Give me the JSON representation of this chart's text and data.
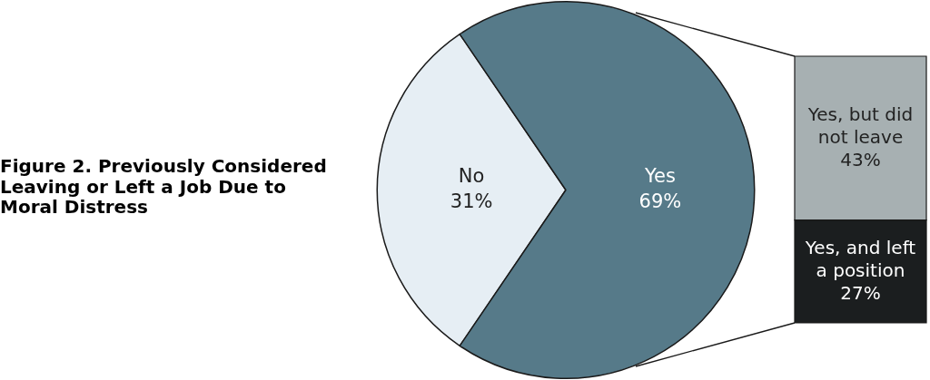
{
  "chart_data": [
    {
      "type": "pie",
      "title": "Figure 2. Previously Considered Leaving or Left a Job Due to Moral Distress",
      "categories": [
        "No",
        "Yes"
      ],
      "values": [
        31,
        69
      ],
      "colors": [
        "#e6eef4",
        "#567a89"
      ],
      "value_labels": [
        "31%",
        "69%"
      ]
    },
    {
      "type": "bar",
      "stacked": true,
      "tick_labels": false,
      "categories": [
        null
      ],
      "series": [
        {
          "name": "Yes, and left a position",
          "color": "#1b1e1f",
          "values": [
            27
          ],
          "value_labels": [
            "27%"
          ]
        },
        {
          "name": "Yes, but did not leave",
          "color": "#a7b0b2",
          "values": [
            43
          ],
          "value_labels": [
            "43%"
          ]
        }
      ]
    }
  ]
}
